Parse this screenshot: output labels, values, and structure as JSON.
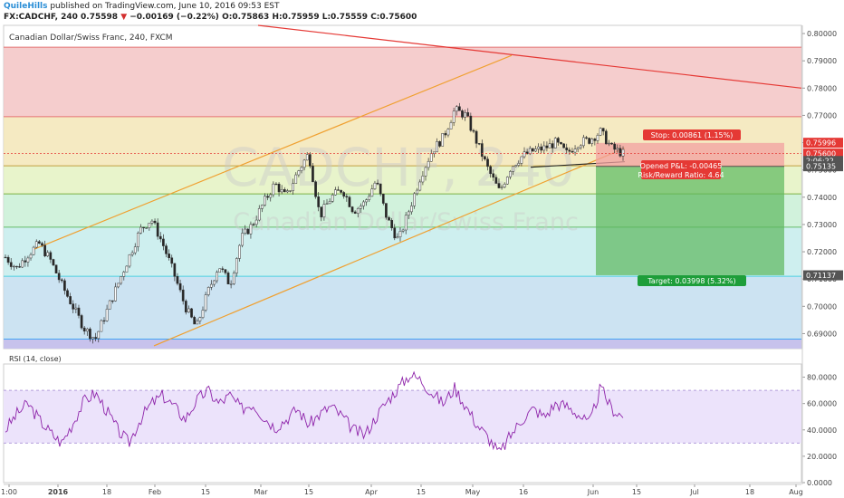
{
  "header": {
    "author": "QuileHills",
    "published_text": " published on TradingView.com, June 10, 2016 09:53 EST",
    "symbol": "FX:CADCHF, 240",
    "last": "0.75598",
    "arrow": "▼",
    "change": "−0.00169 (−0.22%)",
    "open": "O:0.75863",
    "high": "H:0.75959",
    "low": "L:0.75559",
    "close": "C:0.75600"
  },
  "main": {
    "title": "Canadian Dollar/Swiss Franc, 240, FXCM",
    "watermark_symbol": "CADCHF, 240",
    "watermark_name": "Canadian Dollar/Swiss Franc"
  },
  "position": {
    "stop_label": "Stop: 0.00861 (1.15%)",
    "pnl_label": "Opened P&L: -0.00465",
    "rr_label": "Risk/Reward Ratio: 4.64",
    "target_label": "Target: 0.03998 (5.32%)"
  },
  "price_axis": {
    "ticks": [
      "0.80000",
      "0.79000",
      "0.78000",
      "0.77000",
      "0.76000",
      "0.75000",
      "0.74000",
      "0.73000",
      "0.72000",
      "0.71000",
      "0.70000",
      "0.69000"
    ],
    "labels": [
      {
        "text": "0.75996",
        "value": 0.75996,
        "color": "#e53935"
      },
      {
        "text": "0.75600",
        "value": 0.756,
        "color": "#e53935"
      },
      {
        "text": "2:06:22",
        "value": 0.7533,
        "color": "#555555"
      },
      {
        "text": "0.75135",
        "value": 0.75135,
        "color": "#555555"
      },
      {
        "text": "0.71137",
        "value": 0.71137,
        "color": "#555555"
      }
    ]
  },
  "rsi": {
    "title": "RSI (14, close)",
    "ticks": [
      "80.0000",
      "60.0000",
      "40.0000",
      "20.0000",
      "0.0000"
    ],
    "upper": 70,
    "lower": 30
  },
  "time_axis": {
    "labels": [
      "1:00",
      "2016",
      "18",
      "Feb",
      "15",
      "Mar",
      "15",
      "Apr",
      "15",
      "May",
      "16",
      "Jun",
      "15",
      "Jul",
      "18",
      "Aug"
    ]
  },
  "chart_data": {
    "type": "candlestick",
    "symbol": "CADCHF",
    "timeframe": "240",
    "ylim": [
      0.6845,
      0.803
    ],
    "fib_levels": [
      0.795,
      0.7695,
      0.7515,
      0.7412,
      0.729,
      0.711,
      0.688
    ],
    "fib_colors": [
      "#f3c4c4",
      "#f3e6b7",
      "#e4f2c2",
      "#c9f0d6",
      "#c6ecec",
      "#c3def0",
      "#e6e6e6"
    ],
    "entry_price": 0.7513,
    "stop_price": 0.7599,
    "target_price": 0.7114,
    "last_price": 0.756,
    "candle_closes_sampled": [
      0.718,
      0.714,
      0.719,
      0.723,
      0.717,
      0.708,
      0.7,
      0.692,
      0.688,
      0.698,
      0.708,
      0.718,
      0.728,
      0.732,
      0.723,
      0.712,
      0.7,
      0.692,
      0.705,
      0.715,
      0.708,
      0.725,
      0.73,
      0.738,
      0.745,
      0.74,
      0.749,
      0.756,
      0.733,
      0.74,
      0.743,
      0.735,
      0.738,
      0.746,
      0.732,
      0.724,
      0.736,
      0.748,
      0.757,
      0.762,
      0.772,
      0.77,
      0.76,
      0.75,
      0.742,
      0.751,
      0.755,
      0.757,
      0.758,
      0.76,
      0.756,
      0.76,
      0.761,
      0.764,
      0.758,
      0.756
    ],
    "rsi_values_sampled": [
      40,
      52,
      60,
      48,
      38,
      30,
      45,
      62,
      68,
      55,
      40,
      30,
      48,
      60,
      66,
      58,
      48,
      62,
      70,
      60,
      66,
      56,
      60,
      50,
      42,
      48,
      56,
      44,
      52,
      58,
      50,
      40,
      36,
      50,
      62,
      72,
      82,
      78,
      68,
      60,
      72,
      58,
      44,
      34,
      22,
      36,
      48,
      56,
      50,
      60,
      58,
      52,
      44,
      72,
      56,
      50
    ]
  }
}
